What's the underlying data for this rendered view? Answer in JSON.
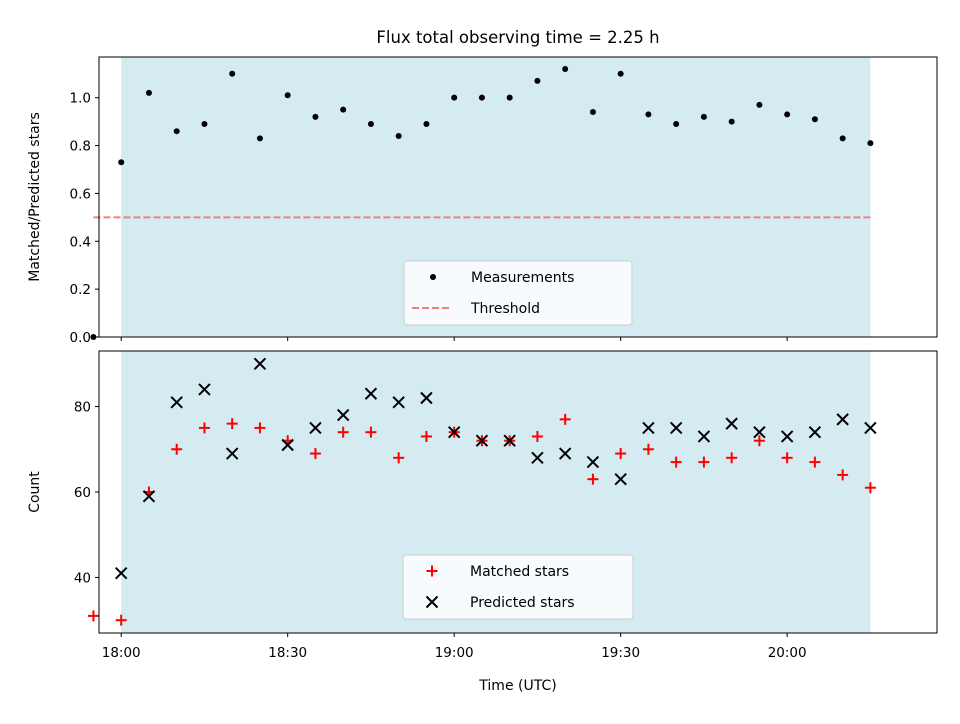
{
  "chart_data": [
    {
      "type": "scatter",
      "title": "Flux total observing time = 2.25 h",
      "xlabel": "",
      "ylabel": "Matched/Predicted stars",
      "xlim": [
        "17:56",
        "20:27"
      ],
      "ylim": [
        0,
        1.17
      ],
      "yticks": [
        "0.0",
        "0.2",
        "0.4",
        "0.6",
        "0.8",
        "1.0"
      ],
      "shaded_span": [
        "18:00",
        "20:15"
      ],
      "shade_color": "#add8e6",
      "grid": false,
      "legend_position": "lower-center",
      "series": [
        {
          "name": "Measurements",
          "marker": "dot",
          "color": "#000000",
          "x": [
            "17:55",
            "18:00",
            "18:05",
            "18:10",
            "18:15",
            "18:20",
            "18:25",
            "18:30",
            "18:35",
            "18:40",
            "18:45",
            "18:50",
            "18:55",
            "19:00",
            "19:05",
            "19:10",
            "19:15",
            "19:20",
            "19:25",
            "19:30",
            "19:35",
            "19:40",
            "19:45",
            "19:50",
            "19:55",
            "20:00",
            "20:05",
            "20:10",
            "20:15"
          ],
          "y": [
            0.0,
            0.73,
            1.02,
            0.86,
            0.89,
            1.1,
            0.83,
            1.01,
            0.92,
            0.95,
            0.89,
            0.84,
            0.89,
            1.0,
            1.0,
            1.0,
            1.07,
            1.12,
            0.94,
            1.1,
            0.93,
            0.89,
            0.92,
            0.9,
            0.97,
            0.93,
            0.91,
            0.83,
            0.81
          ]
        },
        {
          "name": "Threshold",
          "marker": "dashed-line",
          "color": "#f08080",
          "x": [
            "17:55",
            "20:15"
          ],
          "y": [
            0.5,
            0.5
          ]
        }
      ]
    },
    {
      "type": "scatter",
      "title": "",
      "xlabel": "Time (UTC)",
      "ylabel": "Count",
      "xlim": [
        "17:56",
        "20:27"
      ],
      "ylim": [
        27,
        93
      ],
      "xticks": [
        "18:00",
        "18:30",
        "19:00",
        "19:30",
        "20:00"
      ],
      "yticks": [
        "40",
        "60",
        "80"
      ],
      "shaded_span": [
        "18:00",
        "20:15"
      ],
      "shade_color": "#add8e6",
      "grid": false,
      "legend_position": "lower-center",
      "series": [
        {
          "name": "Matched stars",
          "marker": "plus",
          "color": "#ff0000",
          "x": [
            "17:55",
            "18:00",
            "18:05",
            "18:10",
            "18:15",
            "18:20",
            "18:25",
            "18:30",
            "18:35",
            "18:40",
            "18:45",
            "18:50",
            "18:55",
            "19:00",
            "19:05",
            "19:10",
            "19:15",
            "19:20",
            "19:25",
            "19:30",
            "19:35",
            "19:40",
            "19:45",
            "19:50",
            "19:55",
            "20:00",
            "20:05",
            "20:10",
            "20:15"
          ],
          "y": [
            31,
            30,
            60,
            70,
            75,
            76,
            75,
            72,
            69,
            74,
            74,
            68,
            73,
            74,
            72,
            72,
            73,
            77,
            63,
            69,
            70,
            67,
            67,
            68,
            72,
            68,
            67,
            64,
            61
          ]
        },
        {
          "name": "Predicted stars",
          "marker": "x",
          "color": "#000000",
          "x": [
            "18:00",
            "18:05",
            "18:10",
            "18:15",
            "18:20",
            "18:25",
            "18:30",
            "18:35",
            "18:40",
            "18:45",
            "18:50",
            "18:55",
            "19:00",
            "19:05",
            "19:10",
            "19:15",
            "19:20",
            "19:25",
            "19:30",
            "19:35",
            "19:40",
            "19:45",
            "19:50",
            "19:55",
            "20:00",
            "20:05",
            "20:10",
            "20:15"
          ],
          "y": [
            41,
            59,
            81,
            84,
            69,
            90,
            71,
            75,
            78,
            83,
            81,
            82,
            74,
            72,
            72,
            68,
            69,
            67,
            63,
            75,
            75,
            73,
            76,
            74,
            73,
            74,
            77,
            75
          ]
        }
      ]
    }
  ]
}
